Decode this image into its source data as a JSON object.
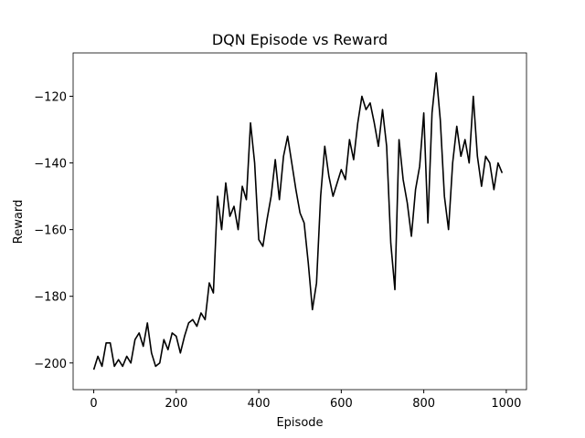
{
  "chart_data": {
    "type": "line",
    "title": "DQN Episode vs Reward",
    "x_label": "Episode",
    "y_label": "Reward",
    "x": [
      0,
      10,
      20,
      30,
      40,
      50,
      60,
      70,
      80,
      90,
      100,
      110,
      120,
      130,
      140,
      150,
      160,
      170,
      180,
      190,
      200,
      210,
      220,
      230,
      240,
      250,
      260,
      270,
      280,
      290,
      300,
      310,
      320,
      330,
      340,
      350,
      360,
      370,
      380,
      390,
      400,
      410,
      420,
      430,
      440,
      450,
      460,
      470,
      480,
      490,
      500,
      510,
      520,
      530,
      540,
      550,
      560,
      570,
      580,
      590,
      600,
      610,
      620,
      630,
      640,
      650,
      660,
      670,
      680,
      690,
      700,
      710,
      720,
      730,
      740,
      750,
      760,
      770,
      780,
      790,
      800,
      810,
      820,
      830,
      840,
      850,
      860,
      870,
      880,
      890,
      900,
      910,
      920,
      930,
      940,
      950,
      960,
      970,
      980,
      990
    ],
    "series": [
      {
        "color": "#000000",
        "values": [
          -202,
          -198,
          -201,
          -194,
          -194,
          -201,
          -199,
          -201,
          -198,
          -200,
          -193,
          -191,
          -195,
          -188,
          -197,
          -201,
          -200,
          -193,
          -196,
          -191,
          -192,
          -197,
          -192,
          -188,
          -187,
          -189,
          -185,
          -187,
          -176,
          -179,
          -150,
          -160,
          -146,
          -156,
          -153,
          -160,
          -147,
          -151,
          -128,
          -140,
          -163,
          -165,
          -157,
          -150,
          -139,
          -151,
          -138,
          -132,
          -140,
          -148,
          -155,
          -158,
          -170,
          -184,
          -176,
          -150,
          -135,
          -144,
          -150,
          -146,
          -142,
          -145,
          -133,
          -139,
          -128,
          -120,
          -124,
          -122,
          -128,
          -135,
          -124,
          -135,
          -164,
          -178,
          -133,
          -145,
          -152,
          -162,
          -148,
          -141,
          -125,
          -158,
          -125,
          -113,
          -127,
          -150,
          -160,
          -140,
          -129,
          -138,
          -133,
          -140,
          -120,
          -138,
          -147,
          -138,
          -140,
          -148,
          -140,
          -143
        ]
      }
    ],
    "xlim": [
      -50,
      1049
    ],
    "ylim": [
      -208,
      -107
    ],
    "xticks": [
      0,
      200,
      400,
      600,
      800,
      1000
    ],
    "yticks": [
      {
        "value": -200,
        "label": "−200"
      },
      {
        "value": -180,
        "label": "−180"
      },
      {
        "value": -160,
        "label": "−160"
      },
      {
        "value": -140,
        "label": "−140"
      },
      {
        "value": -120,
        "label": "−120"
      }
    ]
  }
}
